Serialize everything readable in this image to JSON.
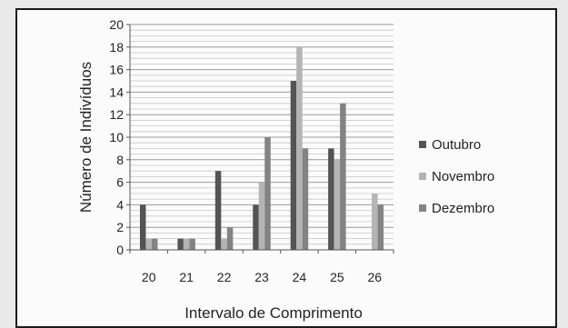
{
  "chart_data": {
    "type": "bar",
    "title": "",
    "xlabel": "Intervalo de Comprimento",
    "ylabel": "Número de Indivíduos",
    "categories": [
      "20",
      "21",
      "22",
      "23",
      "24",
      "25",
      "26"
    ],
    "ylim": [
      0,
      20
    ],
    "yticks": [
      "0",
      "2",
      "4",
      "6",
      "8",
      "10",
      "12",
      "14",
      "16",
      "18",
      "20"
    ],
    "grid": true,
    "legend_position": "right",
    "series": [
      {
        "name": "Outubro",
        "color": "#545454",
        "values": [
          4,
          1,
          7,
          4,
          15,
          9,
          0
        ]
      },
      {
        "name": "Novembro",
        "color": "#b4b4b4",
        "values": [
          1,
          1,
          1,
          6,
          18,
          8,
          5
        ]
      },
      {
        "name": "Dezembro",
        "color": "#838383",
        "values": [
          1,
          1,
          2,
          10,
          9,
          13,
          4
        ]
      }
    ]
  }
}
